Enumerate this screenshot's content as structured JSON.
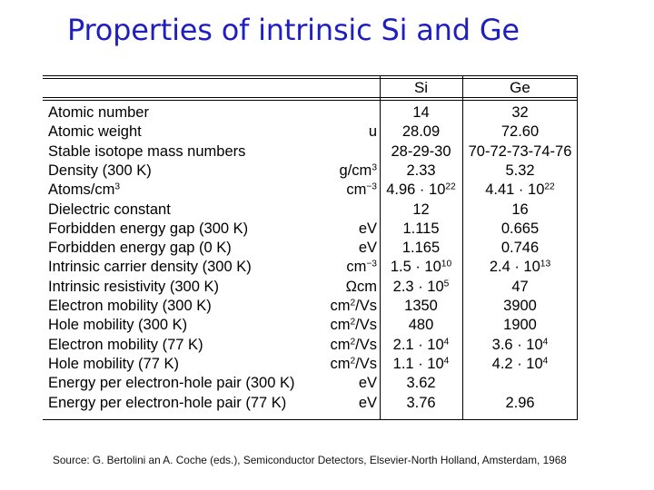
{
  "title": "Properties of intrinsic Si and Ge",
  "table": {
    "headers": [
      "Si",
      "Ge"
    ],
    "rows": [
      {
        "label": "Atomic number",
        "unit": "",
        "unit_sup": "",
        "si": "14",
        "si_sup": "",
        "ge": "32",
        "ge_sup": ""
      },
      {
        "label": "Atomic weight",
        "unit": "u",
        "unit_sup": "",
        "si": "28.09",
        "si_sup": "",
        "ge": "72.60",
        "ge_sup": ""
      },
      {
        "label": "Stable isotope mass numbers",
        "unit": "",
        "unit_sup": "",
        "si": "28-29-30",
        "si_sup": "",
        "ge": "70-72-73-74-76",
        "ge_sup": ""
      },
      {
        "label": "Density (300 K)",
        "unit": "g/cm",
        "unit_sup": "3",
        "si": "2.33",
        "si_sup": "",
        "ge": "5.32",
        "ge_sup": ""
      },
      {
        "label": "Atoms/cm",
        "label_sup": "3",
        "unit": "cm",
        "unit_sup": "−3",
        "si": "4.96 · 10",
        "si_sup": "22",
        "ge": "4.41 · 10",
        "ge_sup": "22"
      },
      {
        "label": "Dielectric constant",
        "unit": "",
        "unit_sup": "",
        "si": "12",
        "si_sup": "",
        "ge": "16",
        "ge_sup": ""
      },
      {
        "label": "Forbidden energy gap (300 K)",
        "unit": "eV",
        "unit_sup": "",
        "si": "1.115",
        "si_sup": "",
        "ge": "0.665",
        "ge_sup": ""
      },
      {
        "label": "Forbidden energy gap (0 K)",
        "unit": "eV",
        "unit_sup": "",
        "si": "1.165",
        "si_sup": "",
        "ge": "0.746",
        "ge_sup": ""
      },
      {
        "label": "Intrinsic carrier density (300 K)",
        "unit": "cm",
        "unit_sup": "−3",
        "si": "1.5 · 10",
        "si_sup": "10",
        "ge": "2.4 · 10",
        "ge_sup": "13"
      },
      {
        "label": "Intrinsic resistivity (300 K)",
        "unit": "Ωcm",
        "unit_sup": "",
        "si": "2.3 · 10",
        "si_sup": "5",
        "ge": "47",
        "ge_sup": ""
      },
      {
        "label": "Electron mobility (300 K)",
        "unit": "cm",
        "unit_sup": "2",
        "unit_tail": "/Vs",
        "si": "1350",
        "si_sup": "",
        "ge": "3900",
        "ge_sup": ""
      },
      {
        "label": "Hole mobility (300 K)",
        "unit": "cm",
        "unit_sup": "2",
        "unit_tail": "/Vs",
        "si": "480",
        "si_sup": "",
        "ge": "1900",
        "ge_sup": ""
      },
      {
        "label": "Electron mobility (77 K)",
        "unit": "cm",
        "unit_sup": "2",
        "unit_tail": "/Vs",
        "si": "2.1 · 10",
        "si_sup": "4",
        "ge": "3.6 · 10",
        "ge_sup": "4"
      },
      {
        "label": "Hole mobility (77 K)",
        "unit": "cm",
        "unit_sup": "2",
        "unit_tail": "/Vs",
        "si": "1.1 · 10",
        "si_sup": "4",
        "ge": "4.2 · 10",
        "ge_sup": "4"
      },
      {
        "label": "Energy per electron-hole pair (300 K)",
        "unit": "eV",
        "unit_sup": "",
        "si": "3.62",
        "si_sup": "",
        "ge": "",
        "ge_sup": ""
      },
      {
        "label": "Energy per electron-hole pair (77 K)",
        "unit": "eV",
        "unit_sup": "",
        "si": "3.76",
        "si_sup": "",
        "ge": "2.96",
        "ge_sup": ""
      }
    ]
  },
  "source": "Source: G. Bertolini an A. Coche (eds.), Semiconductor Detectors, Elsevier-North Holland, Amsterdam, 1968",
  "colors": {
    "title": "#1f1fbf"
  }
}
